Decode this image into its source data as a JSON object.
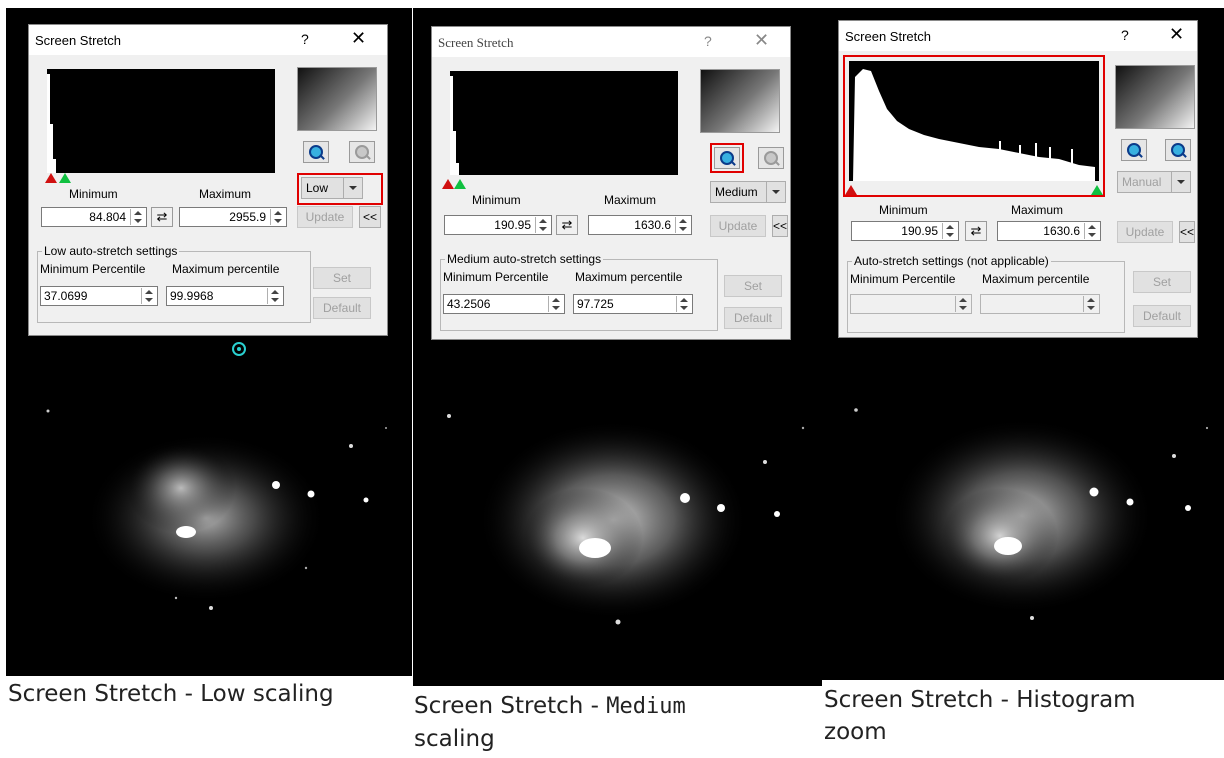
{
  "panels": [
    {
      "dialog": {
        "title": "Screen Stretch",
        "help": "?",
        "close": "✕",
        "minimum_label": "Minimum",
        "maximum_label": "Maximum",
        "minimum_value": "84.804",
        "maximum_value": "2955.9",
        "mode": "Low",
        "update_label": "Update",
        "collapse_label": "<<",
        "group_label": "Low auto-stretch settings",
        "min_percentile_label": "Minimum Percentile",
        "max_percentile_label": "Maximum percentile",
        "min_percentile": "37.0699",
        "max_percentile": "99.9968",
        "set_label": "Set",
        "default_label": "Default"
      },
      "caption": "Screen Stretch - Low scaling"
    },
    {
      "dialog": {
        "title": "Screen Stretch",
        "help": "?",
        "close": "✕",
        "minimum_label": "Minimum",
        "maximum_label": "Maximum",
        "minimum_value": "190.95",
        "maximum_value": "1630.6",
        "mode": "Medium",
        "update_label": "Update",
        "collapse_label": "<<",
        "group_label": "Medium auto-stretch settings",
        "min_percentile_label": "Minimum Percentile",
        "max_percentile_label": "Maximum percentile",
        "min_percentile": "43.2506",
        "max_percentile": "97.725",
        "set_label": "Set",
        "default_label": "Default"
      },
      "caption_prefix": "Screen Stretch - ",
      "caption_mono": "Medium",
      "caption_suffix": "scaling"
    },
    {
      "dialog": {
        "title": "Screen Stretch",
        "help": "?",
        "close": "✕",
        "minimum_label": "Minimum",
        "maximum_label": "Maximum",
        "minimum_value": "190.95",
        "maximum_value": "1630.6",
        "mode": "Manual",
        "update_label": "Update",
        "collapse_label": "<<",
        "group_label": "Auto-stretch settings (not applicable)",
        "min_percentile_label": "Minimum Percentile",
        "max_percentile_label": "Maximum percentile",
        "set_label": "Set",
        "default_label": "Default"
      },
      "caption_line1": "Screen Stretch - Histogram",
      "caption_line2": "zoom"
    }
  ],
  "colors": {
    "highlight": "#e00000",
    "min_marker": "#d01010",
    "max_marker": "#10c040",
    "target": "#2ad0d0"
  },
  "icons": [
    "zoom-in-icon",
    "zoom-out-icon",
    "dropdown-arrow-icon",
    "swap-arrows-icon",
    "spin-arrows-icon",
    "target-icon"
  ]
}
